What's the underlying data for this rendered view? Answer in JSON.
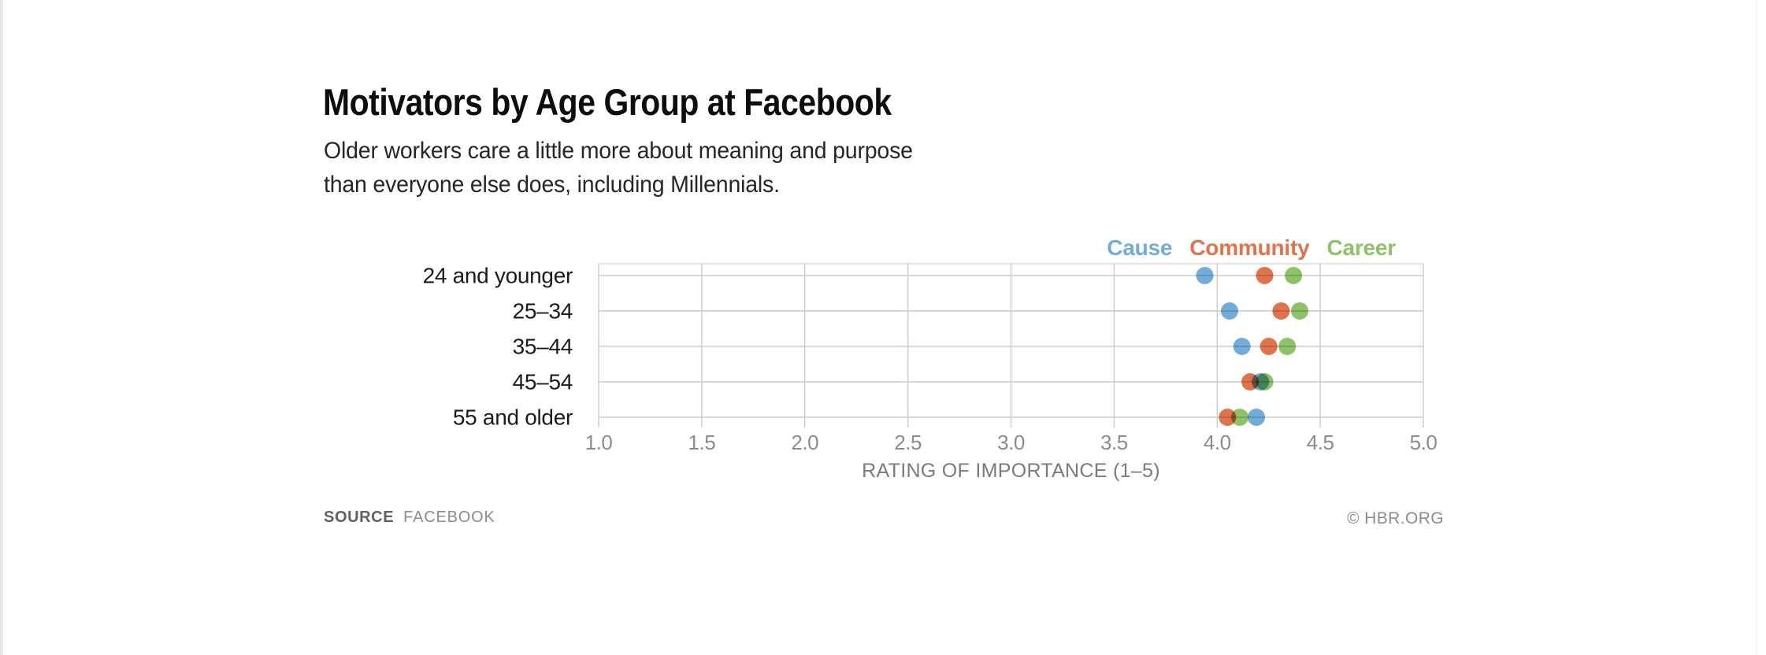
{
  "chart": {
    "title": "Motivators by Age Group at Facebook",
    "subtitle_lines": [
      "Older workers care a little more about meaning and purpose",
      "than everyone else does, including Millennials."
    ]
  },
  "chart_data": {
    "type": "scatter",
    "title": "Motivators by Age Group at Facebook",
    "subtitle": "Older workers care a little more about meaning and purpose than everyone else does, including Millennials.",
    "categories": [
      "24 and younger",
      "25–34",
      "35–44",
      "45–54",
      "55 and older"
    ],
    "series": [
      {
        "name": "Cause",
        "color": "#72ACD9",
        "values": [
          3.94,
          4.06,
          4.12,
          4.21,
          4.19
        ]
      },
      {
        "name": "Community",
        "color": "#E0734C",
        "values": [
          4.23,
          4.31,
          4.25,
          4.16,
          4.05
        ]
      },
      {
        "name": "Career",
        "color": "#8FC268",
        "values": [
          4.37,
          4.4,
          4.34,
          4.23,
          4.11
        ]
      }
    ],
    "xlabel": "RATING OF IMPORTANCE (1–5)",
    "xlim": [
      1.0,
      5.0
    ],
    "xticks": [
      1.0,
      1.5,
      2.0,
      2.5,
      3.0,
      3.5,
      4.0,
      4.5,
      5.0
    ],
    "xtick_labels": [
      "1.0",
      "1.5",
      "2.0",
      "2.5",
      "3.0",
      "3.5",
      "4.0",
      "4.5",
      "5.0"
    ],
    "legend_position": "top-right",
    "grid": {
      "vertical": true,
      "row_lines": true,
      "top_border": true,
      "color": "#cbcbcb"
    },
    "dot_overlap_blend": "multiply"
  },
  "footer": {
    "source_label": "SOURCE",
    "source_value": "FACEBOOK",
    "copyright": "© HBR.ORG"
  }
}
